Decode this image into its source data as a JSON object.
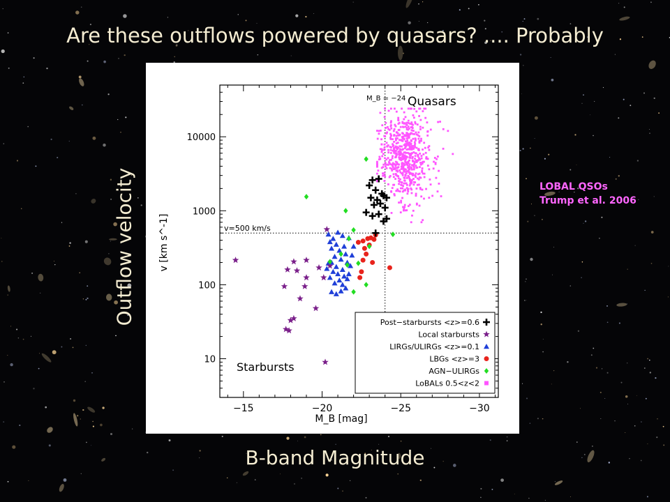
{
  "slide": {
    "title": "Are these outflows powered by quasars? .... Probably",
    "y_axis_label": "Outflow velocity",
    "x_axis_label": "B-band Magnitude",
    "note_line1": "LOBAL QSOs",
    "note_line2": "Trump et al. 2006"
  },
  "colors": {
    "background": "#050507",
    "slide_text": "#f5edd2",
    "note_text": "#ff66ff",
    "post_starbursts": "#000000",
    "local_starbursts": "#7a1f8a",
    "lirgs": "#1f3fd8",
    "lbgs": "#e8231c",
    "agn_ulirgs": "#22dd22",
    "lobals": "#ff55ff"
  },
  "chart_data": {
    "type": "scatter",
    "xlabel": "M_B [mag]",
    "ylabel": "v [km s^-1]",
    "xlim": [
      -13.5,
      -31.2
    ],
    "ylim": [
      3,
      50000
    ],
    "y_scale": "log",
    "x_ticks": [
      -15,
      -20,
      -25,
      -30
    ],
    "x_tick_labels": [
      "−15",
      "−20",
      "−25",
      "−30"
    ],
    "y_ticks": [
      10,
      100,
      1000,
      10000
    ],
    "y_tick_labels": [
      "10",
      "100",
      "1000",
      "10000"
    ],
    "reference_lines": {
      "vertical_x": -24,
      "vertical_label": "M_B = −24",
      "horizontal_y": 500,
      "horizontal_label": "v=500 km/s"
    },
    "annotations": {
      "quasars": "Quasars",
      "starbursts": "Starbursts"
    },
    "legend_position": "bottom-right",
    "series": [
      {
        "name": "Post−starbursts <z>=0.6",
        "marker": "plus",
        "color": "#000000",
        "points": [
          [
            -23.2,
            2600
          ],
          [
            -23.6,
            2700
          ],
          [
            -23.0,
            2200
          ],
          [
            -23.4,
            1900
          ],
          [
            -23.8,
            1700
          ],
          [
            -23.1,
            1500
          ],
          [
            -23.5,
            1400
          ],
          [
            -23.9,
            1600
          ],
          [
            -24.1,
            1500
          ],
          [
            -23.3,
            1200
          ],
          [
            -22.8,
            950
          ],
          [
            -23.7,
            1250
          ],
          [
            -24.0,
            1100
          ],
          [
            -23.2,
            850
          ],
          [
            -23.6,
            900
          ],
          [
            -23.9,
            720
          ],
          [
            -24.1,
            780
          ],
          [
            -23.4,
            500
          ]
        ]
      },
      {
        "name": "Local starbursts",
        "marker": "star",
        "color": "#7a1f8a",
        "points": [
          [
            -14.5,
            215
          ],
          [
            -18.2,
            205
          ],
          [
            -19.0,
            215
          ],
          [
            -18.4,
            155
          ],
          [
            -19.8,
            170
          ],
          [
            -17.8,
            160
          ],
          [
            -20.5,
            180
          ],
          [
            -17.6,
            95
          ],
          [
            -19.0,
            125
          ],
          [
            -20.1,
            125
          ],
          [
            -18.9,
            95
          ],
          [
            -18.6,
            65
          ],
          [
            -19.6,
            48
          ],
          [
            -18.2,
            35
          ],
          [
            -18.0,
            33
          ],
          [
            -17.7,
            25
          ],
          [
            -17.9,
            24
          ],
          [
            -20.2,
            9
          ],
          [
            -20.3,
            560
          ]
        ]
      },
      {
        "name": "LIRGs/ULIRGs <z>=0.1",
        "marker": "triangle",
        "color": "#1f3fd8",
        "points": [
          [
            -20.4,
            480
          ],
          [
            -20.7,
            420
          ],
          [
            -21.0,
            510
          ],
          [
            -21.3,
            460
          ],
          [
            -20.5,
            380
          ],
          [
            -20.9,
            350
          ],
          [
            -21.4,
            330
          ],
          [
            -21.7,
            430
          ],
          [
            -20.6,
            310
          ],
          [
            -21.1,
            290
          ],
          [
            -21.5,
            260
          ],
          [
            -20.8,
            240
          ],
          [
            -21.2,
            220
          ],
          [
            -21.6,
            200
          ],
          [
            -20.4,
            195
          ],
          [
            -20.9,
            175
          ],
          [
            -21.3,
            160
          ],
          [
            -21.8,
            180
          ],
          [
            -20.7,
            150
          ],
          [
            -21.0,
            140
          ],
          [
            -21.4,
            130
          ],
          [
            -20.5,
            125
          ],
          [
            -21.1,
            115
          ],
          [
            -21.6,
            120
          ],
          [
            -20.8,
            105
          ],
          [
            -21.3,
            100
          ],
          [
            -21.5,
            90
          ],
          [
            -20.6,
            80
          ],
          [
            -20.9,
            75
          ],
          [
            -21.2,
            82
          ],
          [
            -21.7,
            140
          ],
          [
            -20.3,
            165
          ],
          [
            -21.9,
            250
          ],
          [
            -22.0,
            330
          ],
          [
            -20.6,
            200
          ]
        ]
      },
      {
        "name": "LBGs <z>=3",
        "marker": "circle",
        "color": "#e8231c",
        "points": [
          [
            -22.9,
            420
          ],
          [
            -23.1,
            430
          ],
          [
            -23.4,
            470
          ],
          [
            -22.6,
            390
          ],
          [
            -23.0,
            345
          ],
          [
            -22.7,
            310
          ],
          [
            -22.8,
            260
          ],
          [
            -22.3,
            375
          ],
          [
            -22.6,
            215
          ],
          [
            -23.2,
            200
          ],
          [
            -22.5,
            150
          ],
          [
            -22.4,
            125
          ],
          [
            -24.3,
            170
          ],
          [
            -23.3,
            410
          ]
        ]
      },
      {
        "name": "AGN−ULIRGs",
        "marker": "diamond",
        "color": "#22dd22",
        "points": [
          [
            -22.8,
            5000
          ],
          [
            -19.0,
            1550
          ],
          [
            -21.5,
            1000
          ],
          [
            -22.0,
            550
          ],
          [
            -21.7,
            420
          ],
          [
            -20.5,
            205
          ],
          [
            -21.6,
            185
          ],
          [
            -22.3,
            195
          ],
          [
            -22.0,
            80
          ],
          [
            -22.8,
            100
          ],
          [
            -23.0,
            330
          ],
          [
            -24.5,
            480
          ],
          [
            -21.2,
            260
          ]
        ]
      },
      {
        "name": "LoBALs 0.5<z<2",
        "marker": "square",
        "color": "#ff55ff",
        "cloud": {
          "count": 640,
          "x_center": -25.3,
          "x_spread": 0.8,
          "log10_v_center": 3.72,
          "log10_v_spread": 0.3,
          "x_range": [
            -23.5,
            -28.6
          ],
          "v_range": [
            700,
            24000
          ]
        },
        "points": [
          [
            -26.0,
            22000
          ],
          [
            -25.3,
            18500
          ],
          [
            -27.5,
            16000
          ],
          [
            -24.4,
            1800
          ],
          [
            -24.0,
            2900
          ],
          [
            -25.8,
            1000
          ],
          [
            -26.8,
            1500
          ],
          [
            -24.7,
            6500
          ],
          [
            -28.0,
            12000
          ],
          [
            -23.8,
            3800
          ]
        ]
      }
    ]
  }
}
